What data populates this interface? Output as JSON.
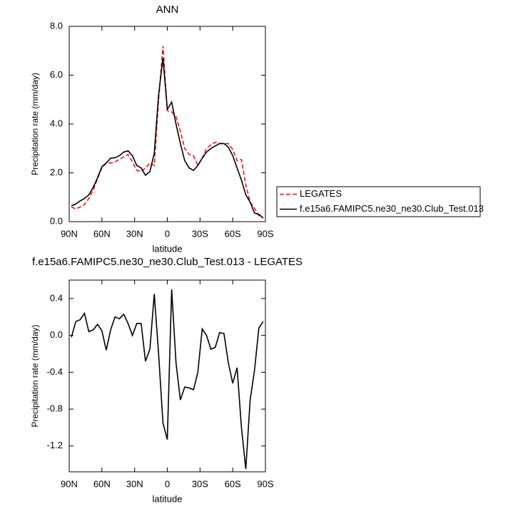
{
  "chart_data": [
    {
      "type": "line",
      "title": "ANN",
      "x_label": "latitude",
      "y_label": "Precipitation rate (mm/day)",
      "x": [
        88,
        84,
        80,
        76,
        72,
        68,
        64,
        60,
        56,
        52,
        48,
        44,
        40,
        36,
        32,
        28,
        24,
        20,
        16,
        12,
        8,
        4,
        0,
        -4,
        -8,
        -12,
        -16,
        -20,
        -24,
        -28,
        -32,
        -36,
        -40,
        -44,
        -48,
        -52,
        -56,
        -60,
        -64,
        -68,
        -72,
        -76,
        -80,
        -84,
        -88
      ],
      "xlim": [
        90,
        -90
      ],
      "xticks": [
        {
          "value": 90,
          "label": "90N"
        },
        {
          "value": 60,
          "label": "60N"
        },
        {
          "value": 30,
          "label": "30N"
        },
        0,
        {
          "value": -30,
          "label": "30S"
        },
        {
          "value": -60,
          "label": "60S"
        },
        {
          "value": -90,
          "label": "90S"
        }
      ],
      "ylim": [
        0,
        8
      ],
      "yticks": [
        {
          "value": 0,
          "label": "0.0"
        },
        {
          "value": 2,
          "label": "2.0"
        },
        {
          "value": 4,
          "label": "4.0"
        },
        {
          "value": 6,
          "label": "6.0"
        },
        {
          "value": 8,
          "label": "8.0"
        }
      ],
      "legend": "right",
      "series": [
        {
          "name": "LEGATES",
          "color": "#e8161b",
          "dashed": true,
          "values": [
            0.6,
            0.52,
            0.6,
            0.7,
            0.95,
            1.3,
            1.75,
            2.2,
            2.4,
            2.4,
            2.45,
            2.55,
            2.65,
            2.75,
            2.45,
            2.1,
            2.05,
            2.2,
            2.4,
            2.3,
            5.0,
            7.2,
            4.55,
            4.5,
            4.3,
            3.7,
            3.0,
            2.75,
            2.7,
            2.3,
            2.6,
            3.0,
            3.15,
            3.25,
            3.2,
            3.2,
            3.2,
            2.95,
            2.5,
            2.55,
            1.5,
            0.8,
            0.55,
            0.25,
            0.15
          ]
        },
        {
          "name": "f.e15a6.FAMIPC5.ne30_ne30.Club_Test.013",
          "color": "#000000",
          "dashed": false,
          "values": [
            0.65,
            0.72,
            0.85,
            0.95,
            1.1,
            1.4,
            1.8,
            2.25,
            2.4,
            2.6,
            2.62,
            2.7,
            2.85,
            2.9,
            2.7,
            2.3,
            2.2,
            1.9,
            2.05,
            2.8,
            5.2,
            6.7,
            4.6,
            4.9,
            4.0,
            3.2,
            2.5,
            2.2,
            2.1,
            2.3,
            2.6,
            2.85,
            3.0,
            3.1,
            3.2,
            3.2,
            3.05,
            2.7,
            2.2,
            1.7,
            1.1,
            0.8,
            0.35,
            0.3,
            0.15
          ]
        }
      ]
    },
    {
      "type": "line",
      "title": "f.e15a6.FAMIPC5.ne30_ne30.Club_Test.013 - LEGATES",
      "x_label": "latitude",
      "y_label": "Precipitation rate (mm/day)",
      "x": [
        88,
        84,
        80,
        76,
        72,
        68,
        64,
        60,
        56,
        52,
        48,
        44,
        40,
        36,
        32,
        28,
        24,
        20,
        16,
        12,
        8,
        4,
        0,
        -4,
        -8,
        -12,
        -16,
        -20,
        -24,
        -28,
        -32,
        -36,
        -40,
        -44,
        -48,
        -52,
        -56,
        -60,
        -64,
        -68,
        -72,
        -76,
        -80,
        -84,
        -88
      ],
      "xlim": [
        90,
        -90
      ],
      "xticks": [
        {
          "value": 90,
          "label": "90N"
        },
        {
          "value": 60,
          "label": "60N"
        },
        {
          "value": 30,
          "label": "30N"
        },
        0,
        {
          "value": -30,
          "label": "30S"
        },
        {
          "value": -60,
          "label": "60S"
        },
        {
          "value": -90,
          "label": "90S"
        }
      ],
      "ylim": [
        -1.48,
        0.6
      ],
      "yticks": [
        0.4,
        {
          "value": 0,
          "label": "0.0"
        },
        -0.4,
        -0.8,
        -1.2
      ],
      "color": "#000000",
      "values": [
        -0.02,
        0.15,
        0.17,
        0.24,
        0.04,
        0.06,
        0.12,
        0.05,
        -0.16,
        0.06,
        0.2,
        0.18,
        0.23,
        0.13,
        0.0,
        0.13,
        0.13,
        -0.28,
        -0.15,
        0.45,
        -0.2,
        -0.95,
        -1.13,
        0.5,
        -0.3,
        -0.7,
        -0.56,
        -0.57,
        -0.59,
        -0.4,
        0.07,
        0.0,
        -0.15,
        -0.13,
        0.03,
        0.02,
        -0.3,
        -0.52,
        -0.35,
        -1.0,
        -1.45,
        -0.7,
        -0.38,
        0.08,
        0.15
      ]
    }
  ]
}
